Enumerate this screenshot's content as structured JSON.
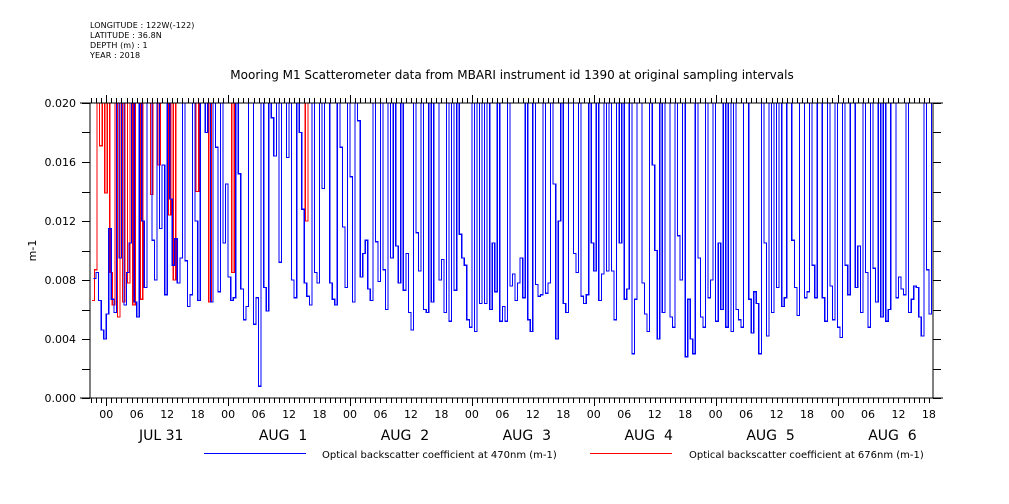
{
  "header": {
    "meta_lines": [
      "LONGITUDE : 122W(-122)",
      "LATITUDE : 36.8N",
      "DEPTH (m) : 1",
      "YEAR : 2018"
    ],
    "title": "Mooring M1 Scatterometer data from MBARI instrument id 1390 at original sampling intervals"
  },
  "colors": {
    "series_470": "#0000ff",
    "series_676": "#ff0000",
    "axis": "#000000"
  },
  "chart_data": {
    "type": "line",
    "title": "Mooring M1 Scatterometer data from MBARI instrument id 1390 at original sampling intervals",
    "xlabel": "",
    "ylabel": "m-1",
    "ylim": [
      0.0,
      0.02
    ],
    "y_ticks": [
      "0.000",
      "0.004",
      "0.008",
      "0.012",
      "0.016",
      "0.020"
    ],
    "y_tick_values": [
      0.0,
      0.004,
      0.008,
      0.012,
      0.016,
      0.02
    ],
    "x_range_hours": [
      -3.2,
      162.8
    ],
    "x_unit": "hours since JUL 31 00:00",
    "hour_ticks": [
      "00",
      "06",
      "12",
      "18",
      "00",
      "06",
      "12",
      "18",
      "00",
      "06",
      "12",
      "18",
      "00",
      "06",
      "12",
      "18",
      "00",
      "06",
      "12",
      "18",
      "00",
      "06",
      "12",
      "18",
      "00",
      "06",
      "12",
      "18"
    ],
    "hour_tick_values": [
      0,
      6,
      12,
      18,
      24,
      30,
      36,
      42,
      48,
      54,
      60,
      66,
      72,
      78,
      84,
      90,
      96,
      102,
      108,
      114,
      120,
      126,
      132,
      138,
      144,
      150,
      156,
      162
    ],
    "day_labels": [
      "JUL 31",
      "AUG  1",
      "AUG  2",
      "AUG  3",
      "AUG  4",
      "AUG  5",
      "AUG  6"
    ],
    "day_label_hours": [
      12,
      36,
      60,
      84,
      108,
      132,
      156
    ],
    "grid": false,
    "legend_placement": "bottom",
    "sample_interval_hours": 0.5,
    "series": [
      {
        "name": "Optical backscatter coefficient at 470nm (m-1)",
        "color": "#0000ff",
        "start_hour": -2.5,
        "values": [
          0.0081,
          0.0085,
          0.0066,
          0.0046,
          0.004,
          0.0057,
          0.0115,
          0.0067,
          0.0058,
          0.02,
          0.0095,
          0.02,
          0.0063,
          0.0085,
          0.0105,
          0.02,
          0.0065,
          0.0055,
          0.02,
          0.012,
          0.0075,
          0.02,
          0.02,
          0.0107,
          0.008,
          0.02,
          0.0115,
          0.0158,
          0.007,
          0.02,
          0.0135,
          0.009,
          0.0108,
          0.0078,
          0.0095,
          0.02,
          0.0093,
          0.0062,
          0.007,
          0.02,
          0.012,
          0.0066,
          0.02,
          0.02,
          0.018,
          0.02,
          0.0065,
          0.02,
          0.017,
          0.0072,
          0.02,
          0.0105,
          0.0145,
          0.0082,
          0.0066,
          0.0068,
          0.02,
          0.0152,
          0.0074,
          0.0053,
          0.0062,
          0.02,
          0.02,
          0.005,
          0.0068,
          0.0008,
          0.02,
          0.0075,
          0.0059,
          0.02,
          0.019,
          0.0164,
          0.02,
          0.0092,
          0.02,
          0.02,
          0.0163,
          0.02,
          0.008,
          0.0068,
          0.02,
          0.018,
          0.0128,
          0.0078,
          0.0069,
          0.0063,
          0.02,
          0.0085,
          0.0078,
          0.02,
          0.0142,
          0.02,
          0.02,
          0.0078,
          0.0067,
          0.0063,
          0.02,
          0.017,
          0.0116,
          0.0075,
          0.02,
          0.015,
          0.0065,
          0.02,
          0.0188,
          0.0082,
          0.0098,
          0.0107,
          0.0074,
          0.0066,
          0.02,
          0.0106,
          0.0079,
          0.02,
          0.0087,
          0.006,
          0.02,
          0.0095,
          0.02,
          0.0103,
          0.0078,
          0.02,
          0.0073,
          0.0098,
          0.0058,
          0.0046,
          0.02,
          0.0112,
          0.0086,
          0.02,
          0.006,
          0.0058,
          0.02,
          0.0065,
          0.02,
          0.02,
          0.008,
          0.0094,
          0.0058,
          0.02,
          0.0052,
          0.02,
          0.0073,
          0.02,
          0.0111,
          0.0095,
          0.009,
          0.0053,
          0.0048,
          0.02,
          0.0045,
          0.02,
          0.0064,
          0.02,
          0.0064,
          0.02,
          0.006,
          0.0105,
          0.0072,
          0.02,
          0.0052,
          0.0062,
          0.0052,
          0.02,
          0.0076,
          0.0084,
          0.0066,
          0.0078,
          0.0095,
          0.0068,
          0.02,
          0.0053,
          0.0045,
          0.02,
          0.0077,
          0.0069,
          0.007,
          0.02,
          0.0071,
          0.0078,
          0.02,
          0.0145,
          0.004,
          0.012,
          0.02,
          0.0064,
          0.0058,
          0.02,
          0.02,
          0.0098,
          0.0085,
          0.02,
          0.0069,
          0.0064,
          0.007,
          0.02,
          0.0105,
          0.0086,
          0.02,
          0.0066,
          0.0084,
          0.02,
          0.0086,
          0.02,
          0.0086,
          0.0053,
          0.02,
          0.0105,
          0.02,
          0.0067,
          0.0074,
          0.02,
          0.003,
          0.0067,
          0.02,
          0.02,
          0.0078,
          0.0057,
          0.0045,
          0.02,
          0.0158,
          0.01,
          0.004,
          0.02,
          0.0058,
          0.02,
          0.02,
          0.0055,
          0.0048,
          0.02,
          0.011,
          0.008,
          0.02,
          0.0028,
          0.0067,
          0.004,
          0.003,
          0.02,
          0.0095,
          0.0055,
          0.0048,
          0.02,
          0.0068,
          0.008,
          0.02,
          0.0052,
          0.0105,
          0.006,
          0.02,
          0.0048,
          0.02,
          0.0045,
          0.02,
          0.006,
          0.0053,
          0.0048,
          0.02,
          0.02,
          0.0067,
          0.0044,
          0.0072,
          0.0064,
          0.003,
          0.02,
          0.0105,
          0.0042,
          0.02,
          0.0058,
          0.02,
          0.0075,
          0.02,
          0.0062,
          0.0068,
          0.02,
          0.02,
          0.0107,
          0.0075,
          0.0056,
          0.02,
          0.02,
          0.0068,
          0.0072,
          0.02,
          0.009,
          0.0068,
          0.02,
          0.02,
          0.0068,
          0.0052,
          0.02,
          0.0076,
          0.0053,
          0.02,
          0.0048,
          0.0041,
          0.02,
          0.009,
          0.007,
          0.02,
          0.02,
          0.0075,
          0.0103,
          0.0058,
          0.02,
          0.0085,
          0.0048,
          0.02,
          0.0088,
          0.0065,
          0.02,
          0.0055,
          0.02,
          0.0052,
          0.006,
          0.02,
          0.02,
          0.0068,
          0.0082,
          0.0074,
          0.007,
          0.02,
          0.0058,
          0.0067,
          0.0076,
          0.0075,
          0.0055,
          0.0042,
          0.02,
          0.0087,
          0.0057,
          0.02,
          0.0068,
          0.0052,
          0.02,
          0.0063,
          0.0082,
          0.02,
          0.0056,
          0.02,
          0.0092,
          0.0068,
          0.0074,
          0.02,
          0.009,
          0.0072,
          0.02,
          0.0066,
          0.005,
          0.0043,
          0.0058,
          0.0056,
          0.0068,
          0.0072,
          0.0033,
          0.006,
          0.0056,
          0.0062,
          0.0034,
          0.006,
          0.0048,
          0.0075,
          0.0015,
          0.0078,
          0.0065,
          0.0052,
          0.001,
          0.006,
          0.0075,
          0.0045,
          0.006,
          0.0053,
          0.02,
          0.0057,
          0.005,
          0.0055,
          0.0048,
          0.0036,
          0.003,
          0.02,
          0.02,
          0.009,
          0.006,
          0.02,
          0.0095,
          0.0105,
          0.008,
          0.02,
          0.02,
          0.0085,
          0.02,
          0.0068,
          0.02,
          0.02,
          0.0055,
          0.02,
          0.018,
          0.02,
          0.0165,
          0.02,
          0.0085,
          0.02,
          0.02,
          0.0083,
          0.0088,
          0.02,
          0.008,
          0.02,
          0.02,
          0.0095,
          0.0082,
          0.0055,
          0.02,
          0.02,
          0.009,
          0.0098,
          0.02,
          0.0088,
          0.02,
          0.0078,
          0.02,
          0.006,
          0.0058,
          0.02,
          0.008,
          0.02,
          0.0048,
          0.0034,
          0.02,
          0.0044,
          0.02,
          0.02,
          0.02,
          0.016,
          0.02,
          0.0105,
          0.02,
          0.01,
          0.02,
          0.015,
          0.02,
          0.0068,
          0.02,
          0.0065
        ]
      },
      {
        "name": "Optical backscatter coefficient at 676nm (m-1)",
        "color": "#ff0000",
        "start_hour": -2.8,
        "values": [
          0.0066,
          0.0087,
          0.02,
          0.0171,
          0.02,
          0.0139,
          0.02,
          0.0085,
          0.0063,
          0.02,
          0.0055,
          0.02,
          0.0065,
          0.02,
          0.0078,
          0.02,
          0.0063,
          0.02,
          0.02,
          0.0067,
          0.02,
          0.02,
          0.02,
          0.0138,
          0.02,
          0.02,
          0.0158,
          0.02,
          0.02,
          0.02,
          0.0124,
          0.02,
          0.008,
          0.02,
          0.02,
          0.02,
          0.02,
          0.02,
          0.02,
          0.02,
          0.02,
          0.014,
          0.02,
          0.02,
          0.02,
          0.02,
          0.0065,
          0.02,
          0.02,
          0.02,
          0.02,
          0.02,
          0.02,
          0.02,
          0.02,
          0.0085,
          0.02,
          0.02,
          0.02,
          0.02,
          0.02,
          0.02,
          0.02,
          0.02,
          0.02,
          0.02,
          0.02,
          0.02,
          0.02,
          0.02,
          0.02,
          0.02,
          0.02,
          0.02,
          0.02,
          0.02,
          0.02,
          0.02,
          0.02,
          0.02,
          0.02,
          0.02,
          0.02,
          0.02,
          0.012,
          0.02,
          0.02,
          0.02,
          0.02,
          0.02,
          0.02,
          0.02,
          0.02,
          0.02,
          0.02,
          0.02,
          0.02,
          0.02,
          0.02,
          0.02,
          0.02,
          0.02,
          0.02,
          0.02,
          0.02,
          0.02,
          0.02,
          0.02,
          0.02,
          0.02,
          0.02,
          0.02,
          0.02,
          0.02,
          0.02,
          0.02,
          0.02,
          0.02,
          0.02,
          0.02,
          0.02,
          0.02,
          0.02,
          0.02,
          0.02,
          0.02,
          0.02,
          0.02,
          0.02,
          0.02,
          0.02,
          0.02,
          0.02,
          0.02,
          0.02,
          0.02,
          0.02,
          0.02,
          0.02,
          0.02,
          0.02,
          0.02,
          0.02,
          0.02,
          0.02,
          0.02,
          0.02,
          0.02,
          0.02,
          0.02,
          0.02,
          0.02,
          0.02,
          0.02,
          0.02,
          0.02,
          0.02,
          0.02,
          0.02,
          0.02,
          0.02,
          0.02,
          0.02,
          0.02,
          0.02,
          0.02,
          0.02,
          0.02,
          0.02,
          0.02,
          0.02,
          0.02,
          0.02,
          0.02,
          0.02,
          0.02,
          0.02,
          0.02,
          0.02,
          0.02,
          0.02,
          0.02,
          0.02,
          0.02,
          0.02,
          0.02,
          0.02,
          0.02,
          0.02,
          0.02,
          0.02,
          0.02,
          0.02,
          0.02,
          0.02,
          0.02,
          0.02,
          0.02,
          0.02,
          0.02,
          0.02,
          0.02,
          0.02,
          0.02,
          0.02,
          0.02,
          0.02,
          0.02,
          0.02,
          0.02,
          0.02,
          0.02,
          0.02,
          0.02,
          0.02,
          0.02,
          0.02,
          0.02,
          0.02,
          0.02,
          0.02,
          0.02,
          0.02,
          0.02,
          0.02,
          0.02,
          0.02,
          0.02,
          0.02,
          0.02,
          0.02,
          0.02,
          0.02,
          0.02,
          0.02,
          0.02,
          0.02,
          0.02,
          0.02,
          0.02,
          0.02,
          0.02,
          0.02,
          0.02,
          0.02,
          0.02,
          0.02,
          0.02,
          0.02,
          0.02,
          0.02,
          0.02,
          0.02,
          0.02,
          0.02,
          0.02,
          0.02,
          0.02,
          0.02,
          0.02,
          0.02,
          0.02,
          0.02,
          0.02,
          0.02,
          0.02,
          0.02,
          0.02,
          0.02,
          0.02,
          0.02,
          0.02,
          0.02,
          0.02,
          0.02,
          0.02,
          0.02,
          0.02,
          0.02,
          0.02,
          0.02,
          0.02,
          0.02,
          0.02,
          0.02,
          0.02,
          0.02,
          0.02,
          0.02,
          0.02,
          0.02,
          0.02,
          0.02,
          0.02,
          0.02,
          0.02,
          0.02,
          0.02,
          0.02,
          0.02,
          0.02,
          0.02,
          0.02,
          0.02,
          0.02,
          0.02,
          0.02,
          0.02,
          0.02,
          0.02,
          0.02,
          0.02,
          0.02,
          0.02,
          0.02,
          0.02,
          0.02,
          0.02,
          0.02,
          0.02,
          0.02,
          0.02,
          0.02,
          0.02,
          0.02,
          0.02,
          0.02,
          0.02,
          0.02,
          0.02,
          0.02,
          0.02,
          0.02,
          0.02,
          0.02,
          0.02
        ]
      }
    ]
  },
  "legend": {
    "items": [
      {
        "label": "Optical backscatter coefficient at 470nm (m-1)",
        "color": "#0000ff"
      },
      {
        "label": "Optical backscatter coefficient at 676nm (m-1)",
        "color": "#ff0000"
      }
    ]
  }
}
